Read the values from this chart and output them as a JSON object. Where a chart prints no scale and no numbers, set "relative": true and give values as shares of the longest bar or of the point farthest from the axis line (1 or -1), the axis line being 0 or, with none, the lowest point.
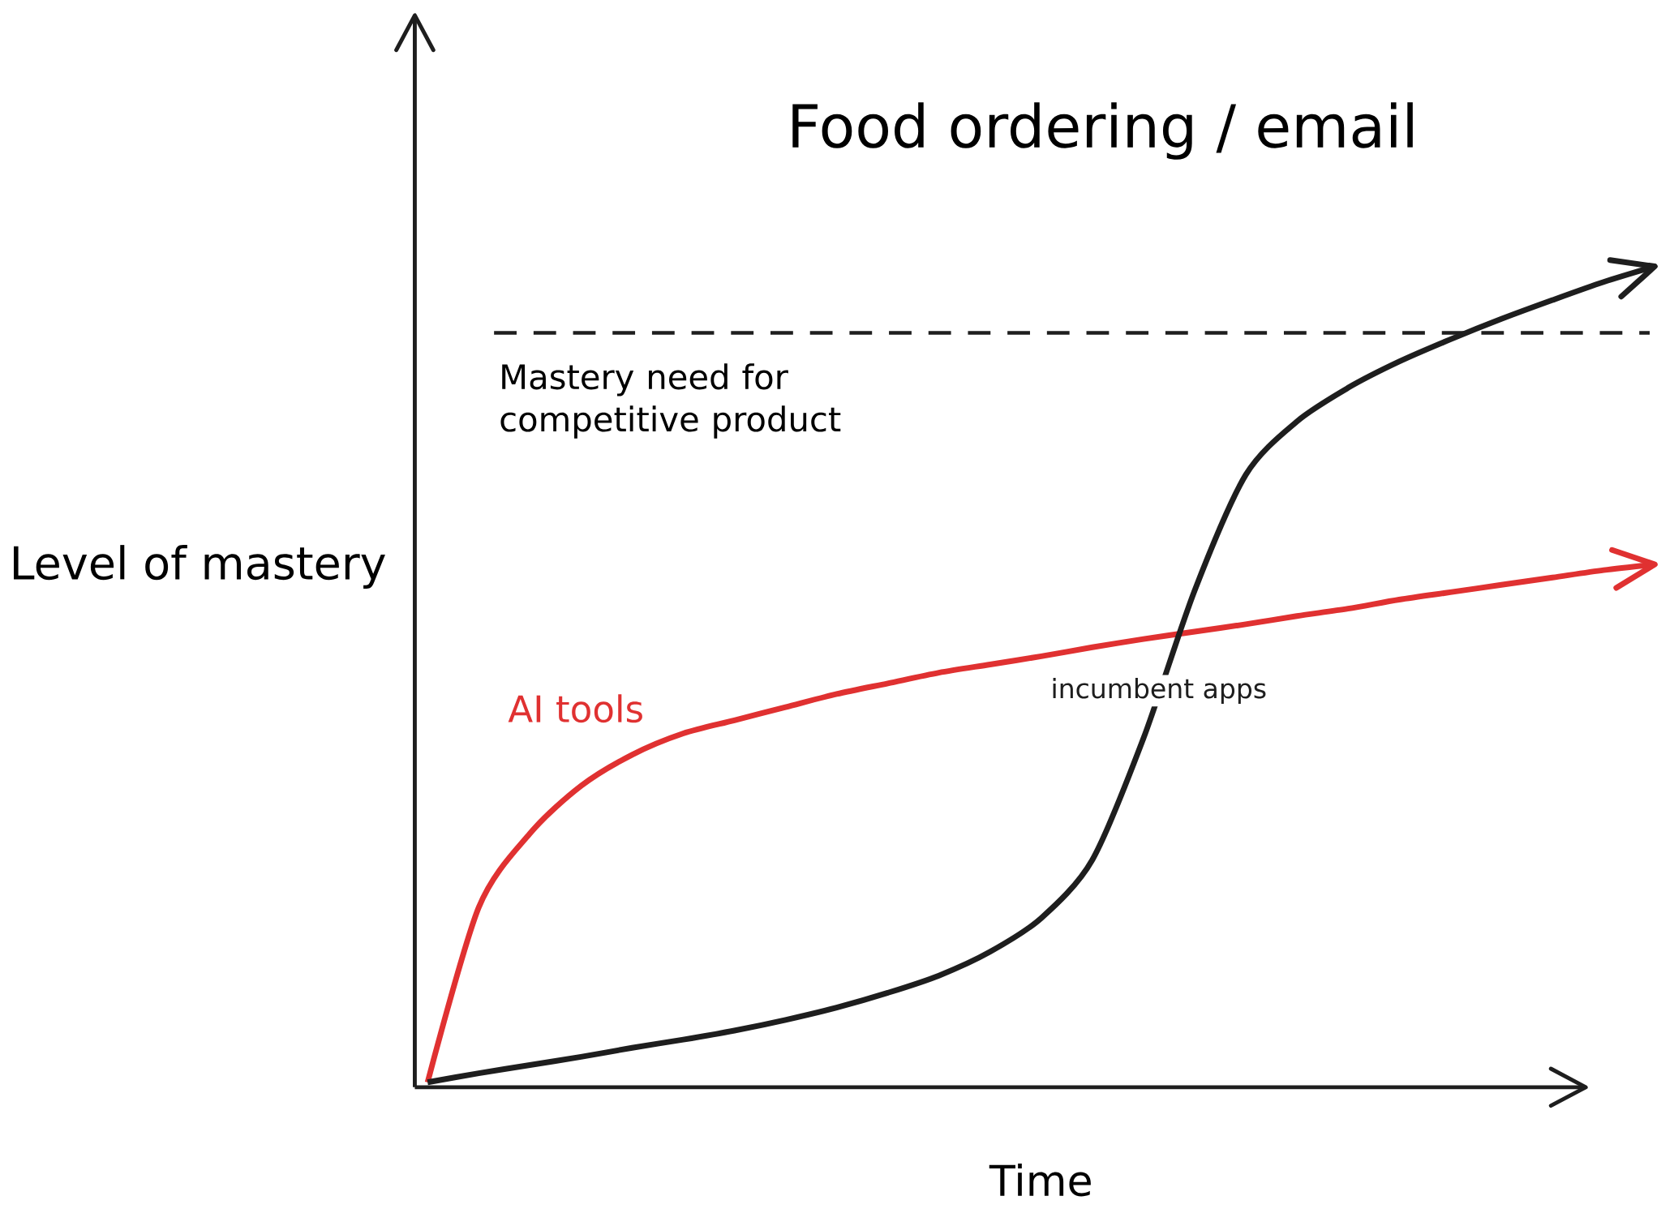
{
  "chart_data": {
    "type": "line",
    "title": "Food ordering / email",
    "xlabel": "Time",
    "ylabel": "Level of mastery",
    "relative": true,
    "legend": false,
    "marker": "none",
    "line_style": "solid",
    "categories": [
      null,
      null,
      null,
      null,
      null,
      null,
      null,
      null,
      null,
      null,
      null,
      null,
      null,
      null,
      null,
      null,
      null,
      null,
      null,
      null,
      null,
      null,
      null,
      null,
      null
    ],
    "series": [
      {
        "name": "AI tools",
        "color": "#e03131",
        "values": [
          0.006,
          0.219,
          0.309,
          0.367,
          0.405,
          0.431,
          0.447,
          0.463,
          0.479,
          0.492,
          0.505,
          0.515,
          0.525,
          0.536,
          0.546,
          0.555,
          0.564,
          0.574,
          0.583,
          0.594,
          0.603,
          0.612,
          0.621,
          0.63,
          0.637
        ]
      },
      {
        "name": "incumbent apps",
        "color": "#1e1e1e",
        "values": [
          0.006,
          0.017,
          0.027,
          0.037,
          0.048,
          0.058,
          0.069,
          0.082,
          0.097,
          0.115,
          0.136,
          0.165,
          0.206,
          0.277,
          0.425,
          0.605,
          0.746,
          0.811,
          0.852,
          0.884,
          0.911,
          0.936,
          0.959,
          0.981,
          1.0
        ]
      }
    ],
    "ref_lines": [
      {
        "axis": "y",
        "value": 0.919,
        "label": "Mastery need for competitive product",
        "color": "#1e1e1e",
        "line_style": "dashed"
      }
    ]
  }
}
